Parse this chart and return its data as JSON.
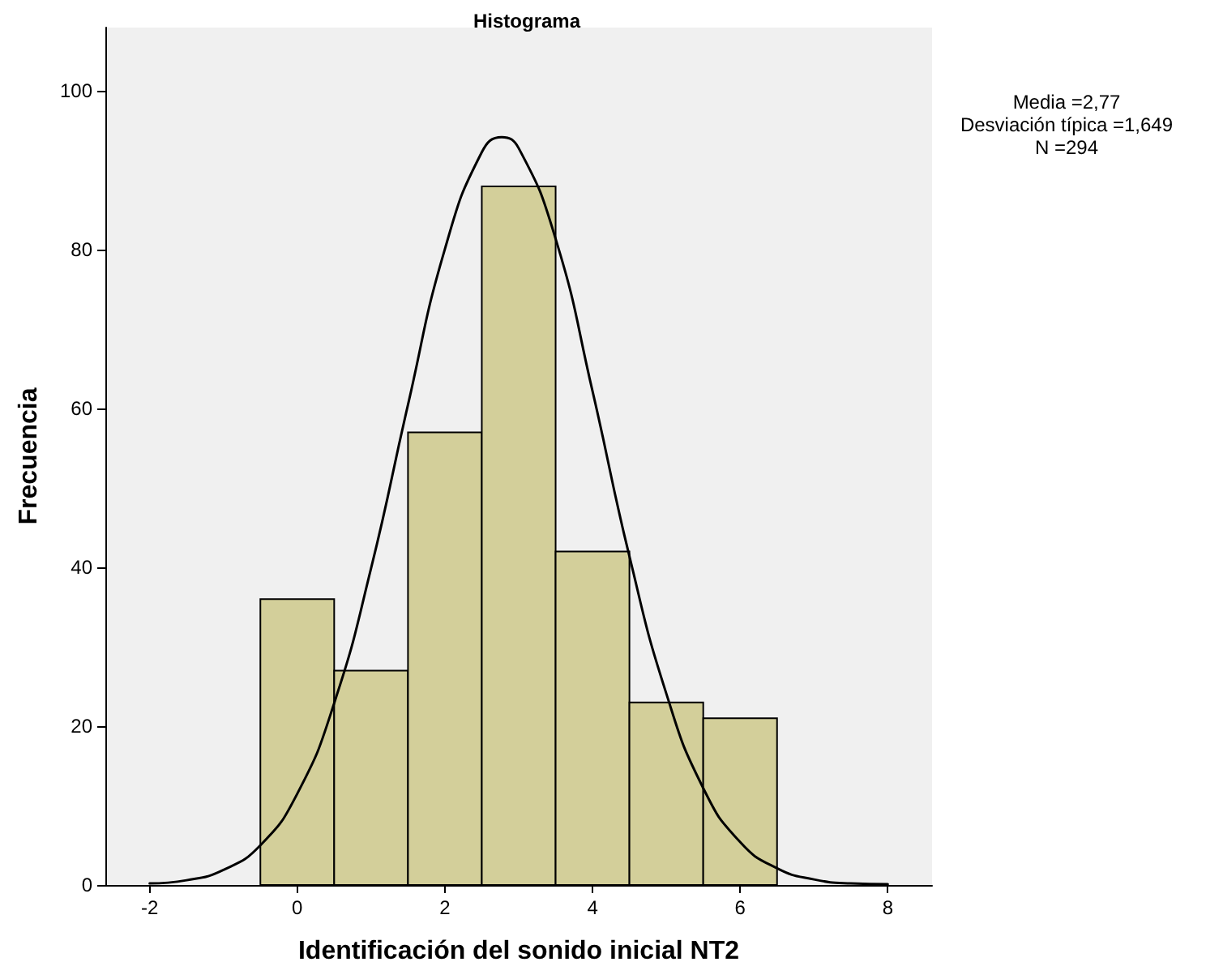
{
  "chart_data": {
    "type": "histogram",
    "title": "Histograma",
    "xlabel": "Identificación del sonido inicial NT2",
    "ylabel": "Frecuencia",
    "bins": [
      -0.5,
      0.5,
      1.5,
      2.5,
      3.5,
      4.5,
      5.5,
      6.5
    ],
    "values": [
      36,
      27,
      57,
      88,
      42,
      23,
      21
    ],
    "color": "#d3cf9a",
    "series": [
      {
        "type": "line",
        "color": "#000000",
        "x": [
          -2,
          -1.5,
          -1,
          -0.5,
          0,
          0.5,
          1,
          1.5,
          2,
          2.5,
          2.77,
          3,
          3.5,
          4,
          4.5,
          5,
          5.5,
          6,
          6.5,
          7,
          7.5,
          8
        ],
        "values": [
          0.2,
          0.6,
          1.9,
          5.0,
          11.5,
          22.9,
          39.9,
          60.5,
          80.1,
          92.3,
          94.2,
          92.8,
          81.4,
          62.2,
          41.4,
          24.1,
          12.2,
          5.4,
          2.1,
          0.7,
          0.2,
          0.1
        ]
      }
    ],
    "xlim": [
      -2.6,
      8.6
    ],
    "xticks": [
      -2,
      0,
      2,
      4,
      6,
      8
    ],
    "ylim": [
      0,
      108
    ],
    "yticks": [
      0,
      20,
      40,
      60,
      80,
      100
    ],
    "grid": false,
    "marker": "none",
    "line_style": "solid",
    "annotations": [
      "Media =2,77",
      "Desviación típica =1,649",
      "N =294"
    ]
  }
}
